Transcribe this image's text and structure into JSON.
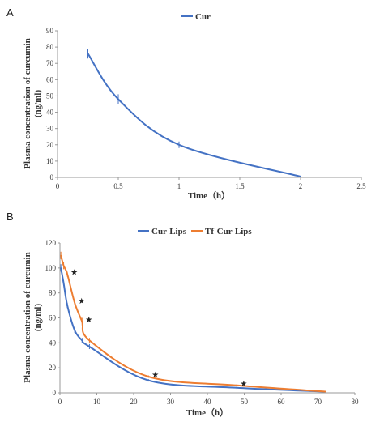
{
  "chart_data": [
    {
      "panel": "A",
      "type": "line",
      "xlabel": "Time（h）",
      "ylabel": "Plasma concentration of curcumin",
      "ylabel_unit": "(ng/ml)",
      "xlim": [
        0,
        2.5
      ],
      "ylim": [
        0,
        90
      ],
      "x_ticks": [
        0,
        0.5,
        1,
        1.5,
        2,
        2.5
      ],
      "x_tick_labels": [
        "0",
        "0.5",
        "1",
        "1.5",
        "2",
        "2.5"
      ],
      "y_ticks": [
        0,
        10,
        20,
        30,
        40,
        50,
        60,
        70,
        80,
        90
      ],
      "y_tick_labels": [
        "0",
        "10",
        "20",
        "30",
        "40",
        "50",
        "60",
        "70",
        "80",
        "90"
      ],
      "grid": false,
      "legend": "top-center",
      "series": [
        {
          "name": "Cur",
          "color": "#4472c4",
          "x": [
            0.25,
            0.5,
            1,
            2
          ],
          "y": [
            76,
            48,
            20,
            0.5
          ],
          "err": [
            3,
            3,
            2,
            0
          ]
        }
      ]
    },
    {
      "panel": "B",
      "type": "line",
      "xlabel": "Time（h）",
      "ylabel": "Plasma concentration of curcumin",
      "ylabel_unit": "(ng/ml)",
      "xlim": [
        0,
        80
      ],
      "ylim": [
        0,
        120
      ],
      "x_ticks": [
        0,
        10,
        20,
        30,
        40,
        50,
        60,
        70,
        80
      ],
      "x_tick_labels": [
        "0",
        "10",
        "20",
        "30",
        "40",
        "50",
        "60",
        "70",
        "80"
      ],
      "y_ticks": [
        0,
        20,
        40,
        60,
        80,
        100,
        120
      ],
      "y_tick_labels": [
        "0",
        "20",
        "40",
        "60",
        "80",
        "100",
        "120"
      ],
      "grid": false,
      "legend": "top-center",
      "series": [
        {
          "name": "Cur-Lips",
          "color": "#4472c4",
          "x": [
            0.25,
            1,
            2,
            4,
            6,
            8,
            24,
            48,
            72
          ],
          "y": [
            100,
            88,
            70,
            50,
            42,
            37,
            10,
            4,
            1
          ],
          "err": [
            3,
            2,
            2,
            2,
            2,
            2,
            1,
            1,
            0
          ]
        },
        {
          "name": "Tf-Cur-Lips",
          "color": "#ed7d31",
          "x": [
            0.25,
            1,
            2,
            4,
            6,
            8,
            24,
            48,
            72
          ],
          "y": [
            110,
            102,
            95,
            72,
            57,
            42,
            13,
            6,
            1
          ],
          "err": [
            3,
            3,
            2,
            2,
            3,
            2,
            1,
            1,
            0
          ]
        }
      ],
      "significance_marker": "★",
      "significance_points": [
        {
          "x": 2,
          "y": 95
        },
        {
          "x": 4,
          "y": 72
        },
        {
          "x": 6,
          "y": 57
        },
        {
          "x": 24,
          "y": 13
        },
        {
          "x": 48,
          "y": 6
        }
      ]
    }
  ]
}
